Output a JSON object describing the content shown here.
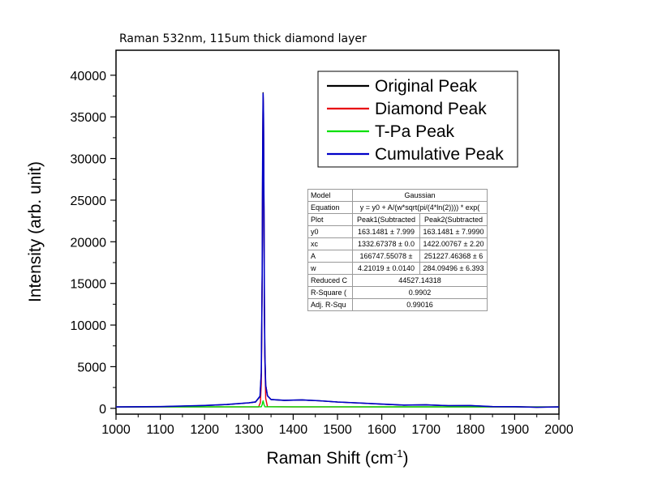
{
  "chart_data": {
    "type": "line",
    "title": "Raman 532nm, 115um thick diamond layer",
    "xlabel": "Raman Shift (cm",
    "xlabel_sup": "-1",
    "xlabel_end": ")",
    "ylabel": "Intensity (arb. unit)",
    "xlim": [
      1000,
      2000
    ],
    "ylim": [
      -700,
      43000
    ],
    "x_ticks": [
      1000,
      1100,
      1200,
      1300,
      1400,
      1500,
      1600,
      1700,
      1800,
      1900,
      2000
    ],
    "y_ticks": [
      0,
      5000,
      10000,
      15000,
      20000,
      25000,
      30000,
      35000,
      40000
    ],
    "grid": false,
    "legend_position": "top-right",
    "series": [
      {
        "name": "Original Peak",
        "color": "#000000",
        "x": [
          1000,
          1100,
          1200,
          1250,
          1300,
          1315,
          1325,
          1328,
          1330,
          1331,
          1332,
          1333,
          1334,
          1335,
          1336,
          1338,
          1342,
          1350,
          1380,
          1420,
          1460,
          1500,
          1560,
          1600,
          1650,
          1700,
          1750,
          1800,
          1850,
          1900,
          1950,
          2000
        ],
        "y": [
          160,
          200,
          330,
          450,
          650,
          760,
          1400,
          4200,
          16000,
          29000,
          37900,
          35500,
          24000,
          12500,
          6500,
          2800,
          1500,
          1050,
          950,
          1000,
          900,
          750,
          600,
          500,
          380,
          420,
          310,
          330,
          200,
          200,
          120,
          170
        ]
      },
      {
        "name": "Diamond Peak",
        "color": "#e8000b",
        "x": [
          1000,
          1100,
          1200,
          1300,
          1322,
          1326,
          1328,
          1330,
          1331,
          1332,
          1333,
          1334,
          1335,
          1336,
          1338,
          1342,
          1400,
          1500,
          1600,
          1700,
          1800,
          1900,
          2000
        ],
        "y": [
          163,
          163,
          163,
          163,
          180,
          700,
          3000,
          15500,
          28500,
          37500,
          35200,
          23500,
          12000,
          5800,
          1200,
          200,
          163,
          163,
          163,
          163,
          163,
          163,
          163
        ]
      },
      {
        "name": "T-Pa Peak",
        "color": "#00e000",
        "x": [
          1000,
          1100,
          1200,
          1300,
          1328,
          1330,
          1331,
          1332,
          1333,
          1334,
          1336,
          1340,
          1400,
          1500,
          1600,
          1700,
          1800,
          1900,
          2000
        ],
        "y": [
          163,
          170,
          175,
          185,
          190,
          450,
          700,
          900,
          700,
          450,
          190,
          190,
          190,
          185,
          180,
          175,
          170,
          165,
          163
        ]
      },
      {
        "name": "Cumulative Peak",
        "color": "#0000c8",
        "x": [
          1000,
          1100,
          1200,
          1250,
          1300,
          1315,
          1325,
          1328,
          1330,
          1331,
          1332,
          1333,
          1334,
          1335,
          1336,
          1338,
          1342,
          1350,
          1380,
          1420,
          1460,
          1500,
          1560,
          1600,
          1650,
          1700,
          1750,
          1800,
          1850,
          1900,
          1950,
          2000
        ],
        "y": [
          170,
          210,
          340,
          460,
          660,
          770,
          1450,
          4300,
          16200,
          29200,
          37800,
          35400,
          23900,
          12400,
          6400,
          2750,
          1500,
          1060,
          960,
          1010,
          910,
          760,
          610,
          510,
          390,
          410,
          320,
          330,
          210,
          200,
          130,
          170
        ]
      }
    ]
  },
  "fit_table": {
    "rows": [
      {
        "label": "Model",
        "value": "Gaussian",
        "span": true
      },
      {
        "label": "Equation",
        "value": "y = y0 + A/(w*sqrt(pi/(4*ln(2)))) * exp(",
        "span": true
      },
      {
        "label": "Plot",
        "c1": "Peak1(Subtracted",
        "c2": "Peak2(Subtracted"
      },
      {
        "label": "y0",
        "c1": "163.1481 ± 7.999",
        "c2": "163.1481 ± 7.9990"
      },
      {
        "label": "xc",
        "c1": "1332.67378 ± 0.0",
        "c2": "1422.00767 ± 2.20"
      },
      {
        "label": "A",
        "c1": "166747.55078 ±",
        "c2": "251227.46368 ± 6"
      },
      {
        "label": "w",
        "c1": "4.21019 ± 0.0140",
        "c2": "284.09496 ± 6.393"
      },
      {
        "label": "Reduced C",
        "value": "44527.14318",
        "span": true
      },
      {
        "label": "R-Square (",
        "value": "0.9902",
        "span": true
      },
      {
        "label": "Adj. R-Squ",
        "value": "0.99016",
        "span": true
      }
    ]
  }
}
